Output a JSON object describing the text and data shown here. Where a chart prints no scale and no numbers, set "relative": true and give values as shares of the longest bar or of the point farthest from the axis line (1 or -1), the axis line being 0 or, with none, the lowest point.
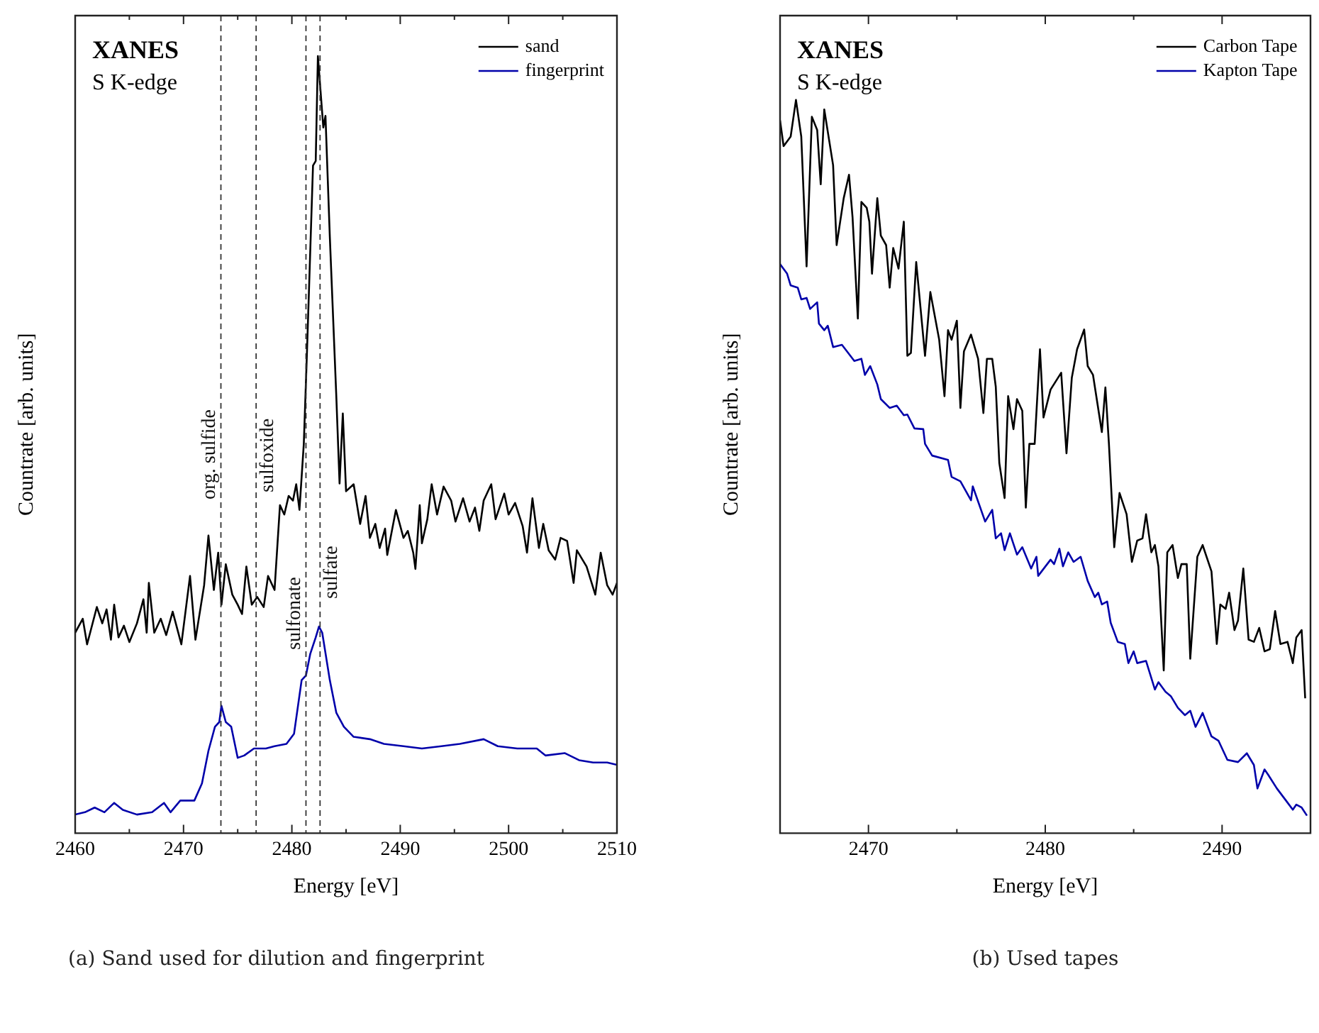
{
  "chart_data": [
    {
      "type": "line",
      "title": "XANES",
      "subtitle": "S K-edge",
      "xlabel": "Energy [eV]",
      "ylabel": "Countrate [arb. units]",
      "relative": true,
      "grid": false,
      "marker": "none",
      "legend": "top right",
      "annotations": [
        "(a) Sand used for dilution and fingerprint"
      ],
      "xlim": [
        2460,
        2510
      ],
      "xticks": [
        2460,
        {
          "value": 2465,
          "label": null
        },
        2470,
        {
          "value": 2475,
          "label": null
        },
        2480,
        {
          "value": 2485,
          "label": null
        },
        2490,
        {
          "value": 2495,
          "label": null
        },
        2500,
        {
          "value": 2505,
          "label": null
        },
        2510
      ],
      "ref_lines": [
        {
          "axis": "x",
          "value": 2473.45,
          "label": "org. sulfide",
          "line_style": "dashed"
        },
        {
          "axis": "x",
          "value": 2476.7,
          "label": "sulfoxide",
          "line_style": "dashed"
        },
        {
          "axis": "x",
          "value": 2481.3,
          "label": "sulfonate",
          "line_style": "dashed"
        },
        {
          "axis": "x",
          "value": 2482.6,
          "label": "sulfate",
          "line_style": "dashed"
        }
      ],
      "series": [
        {
          "name": "sand",
          "color": "#000000",
          "x": [
            2460,
            2460.7,
            2461.1,
            2462,
            2462.5,
            2462.9,
            2463.3,
            2463.6,
            2464,
            2464.5,
            2465,
            2465.7,
            2466.3,
            2466.6,
            2466.8,
            2467.3,
            2467.9,
            2468.4,
            2469,
            2469.8,
            2470.6,
            2471.1,
            2471.9,
            2472.3,
            2472.8,
            2473.2,
            2473.5,
            2473.9,
            2474.5,
            2475,
            2475.4,
            2475.8,
            2476.3,
            2476.8,
            2477.4,
            2477.8,
            2478.4,
            2478.9,
            2479.3,
            2479.7,
            2480.1,
            2480.4,
            2480.7,
            2481.1,
            2481.4,
            2481.95,
            2482.2,
            2482.4,
            2482.9,
            2483.1,
            2483.5,
            2484.1,
            2484.4,
            2484.7,
            2485,
            2485.7,
            2486.3,
            2486.8,
            2487.2,
            2487.7,
            2488.1,
            2488.6,
            2488.8,
            2489.6,
            2490.3,
            2490.7,
            2491.2,
            2491.4,
            2491.8,
            2492,
            2492.5,
            2492.9,
            2493.4,
            2494,
            2494.7,
            2495.1,
            2495.8,
            2496.4,
            2496.9,
            2497.3,
            2497.7,
            2498.4,
            2498.8,
            2499.6,
            2500,
            2500.6,
            2501.3,
            2501.7,
            2502.2,
            2502.8,
            2503.2,
            2503.7,
            2504.3,
            2504.8,
            2505.4,
            2506,
            2506.3,
            2507.2,
            2508,
            2508.5,
            2509.1,
            2509.6,
            2510
          ],
          "values": [
            0.258,
            0.276,
            0.243,
            0.291,
            0.27,
            0.288,
            0.249,
            0.294,
            0.252,
            0.267,
            0.246,
            0.27,
            0.301,
            0.258,
            0.322,
            0.258,
            0.276,
            0.255,
            0.285,
            0.243,
            0.331,
            0.249,
            0.319,
            0.383,
            0.313,
            0.361,
            0.294,
            0.346,
            0.307,
            0.294,
            0.282,
            0.343,
            0.294,
            0.304,
            0.291,
            0.331,
            0.313,
            0.422,
            0.41,
            0.434,
            0.428,
            0.449,
            0.416,
            0.501,
            0.622,
            0.859,
            0.865,
            1,
            0.908,
            0.923,
            0.768,
            0.562,
            0.45,
            0.54,
            0.44,
            0.449,
            0.398,
            0.434,
            0.38,
            0.398,
            0.367,
            0.392,
            0.358,
            0.416,
            0.38,
            0.389,
            0.361,
            0.34,
            0.422,
            0.373,
            0.404,
            0.449,
            0.41,
            0.446,
            0.428,
            0.401,
            0.431,
            0.401,
            0.419,
            0.389,
            0.428,
            0.449,
            0.404,
            0.437,
            0.41,
            0.425,
            0.395,
            0.361,
            0.431,
            0.367,
            0.398,
            0.364,
            0.352,
            0.38,
            0.376,
            0.322,
            0.364,
            0.343,
            0.307,
            0.361,
            0.319,
            0.307,
            0.322
          ]
        },
        {
          "name": "fingerprint",
          "color": "#0000aa",
          "x": [
            2460,
            2460.9,
            2461.8,
            2462.7,
            2463.6,
            2464.4,
            2465.7,
            2467.1,
            2468.2,
            2468.8,
            2469.7,
            2471,
            2471.7,
            2472.3,
            2472.9,
            2473.3,
            2473.5,
            2473.9,
            2474.4,
            2475,
            2475.6,
            2476.5,
            2477.6,
            2478.4,
            2479.5,
            2480.2,
            2480.9,
            2481.3,
            2481.7,
            2482.2,
            2482.5,
            2482.8,
            2483.5,
            2484.1,
            2484.8,
            2485.7,
            2487.2,
            2488.5,
            2490.3,
            2492,
            2493.8,
            2495.5,
            2497.7,
            2499,
            2500.8,
            2502.6,
            2503.4,
            2505.2,
            2506.5,
            2507.8,
            2509.1,
            2510
          ],
          "values": [
            0.024,
            0.027,
            0.033,
            0.027,
            0.039,
            0.03,
            0.024,
            0.027,
            0.039,
            0.027,
            0.042,
            0.042,
            0.064,
            0.106,
            0.137,
            0.143,
            0.164,
            0.143,
            0.137,
            0.097,
            0.1,
            0.109,
            0.109,
            0.112,
            0.115,
            0.128,
            0.197,
            0.203,
            0.231,
            0.252,
            0.266,
            0.258,
            0.197,
            0.155,
            0.137,
            0.124,
            0.121,
            0.115,
            0.112,
            0.109,
            0.112,
            0.115,
            0.121,
            0.112,
            0.109,
            0.109,
            0.1,
            0.103,
            0.094,
            0.091,
            0.091,
            0.088
          ]
        }
      ]
    },
    {
      "type": "line",
      "title": "XANES",
      "subtitle": "S K-edge",
      "xlabel": "Energy [eV]",
      "ylabel": "Countrate [arb. units]",
      "relative": true,
      "grid": false,
      "marker": "none",
      "legend": "top right",
      "annotations": [
        "(b) Used tapes"
      ],
      "xlim": [
        2465,
        2495
      ],
      "xticks": [
        2470,
        {
          "value": 2475,
          "label": null
        },
        2480,
        {
          "value": 2485,
          "label": null
        },
        2490
      ],
      "series": [
        {
          "name": "Carbon Tape",
          "color": "#000000",
          "x": [
            2465,
            2465.2,
            2465.6,
            2465.9,
            2466.2,
            2466.5,
            2466.8,
            2467.1,
            2467.3,
            2467.5,
            2468,
            2468.2,
            2468.6,
            2468.9,
            2469.1,
            2469.4,
            2469.6,
            2469.9,
            2470.05,
            2470.2,
            2470.5,
            2470.7,
            2471,
            2471.2,
            2471.4,
            2471.7,
            2472,
            2472.2,
            2472.4,
            2472.7,
            2473.2,
            2473.5,
            2474,
            2474.3,
            2474.5,
            2474.7,
            2475,
            2475.2,
            2475.4,
            2475.8,
            2476.2,
            2476.5,
            2476.7,
            2477,
            2477.2,
            2477.4,
            2477.7,
            2477.9,
            2478.2,
            2478.4,
            2478.7,
            2478.9,
            2479.1,
            2479.4,
            2479.7,
            2479.9,
            2480.3,
            2480.9,
            2481.2,
            2481.5,
            2481.8,
            2482.2,
            2482.4,
            2482.7,
            2483.2,
            2483.4,
            2483.6,
            2483.9,
            2484.2,
            2484.6,
            2484.9,
            2485.2,
            2485.5,
            2485.7,
            2486,
            2486.2,
            2486.4,
            2486.7,
            2486.9,
            2487.2,
            2487.5,
            2487.7,
            2488,
            2488.2,
            2488.6,
            2488.9,
            2489.4,
            2489.7,
            2489.9,
            2490.2,
            2490.4,
            2490.7,
            2490.9,
            2491.2,
            2491.5,
            2491.8,
            2492.1,
            2492.4,
            2492.7,
            2493,
            2493.3,
            2493.7,
            2494,
            2494.2,
            2494.5,
            2494.7
          ],
          "values": [
            0.972,
            0.937,
            0.95,
            1,
            0.95,
            0.773,
            0.977,
            0.959,
            0.885,
            0.987,
            0.911,
            0.802,
            0.866,
            0.898,
            0.84,
            0.702,
            0.861,
            0.853,
            0.834,
            0.763,
            0.866,
            0.815,
            0.802,
            0.744,
            0.798,
            0.77,
            0.834,
            0.651,
            0.655,
            0.779,
            0.651,
            0.738,
            0.673,
            0.596,
            0.686,
            0.673,
            0.699,
            0.58,
            0.657,
            0.68,
            0.647,
            0.573,
            0.647,
            0.647,
            0.609,
            0.505,
            0.457,
            0.596,
            0.551,
            0.592,
            0.576,
            0.444,
            0.531,
            0.531,
            0.66,
            0.567,
            0.605,
            0.628,
            0.518,
            0.621,
            0.66,
            0.687,
            0.637,
            0.625,
            0.547,
            0.608,
            0.531,
            0.39,
            0.464,
            0.435,
            0.37,
            0.399,
            0.402,
            0.435,
            0.383,
            0.393,
            0.364,
            0.222,
            0.383,
            0.393,
            0.348,
            0.367,
            0.367,
            0.238,
            0.377,
            0.393,
            0.357,
            0.258,
            0.312,
            0.306,
            0.328,
            0.277,
            0.29,
            0.361,
            0.264,
            0.261,
            0.28,
            0.248,
            0.251,
            0.303,
            0.258,
            0.261,
            0.232,
            0.267,
            0.277,
            0.184
          ]
        },
        {
          "name": "Kapton Tape",
          "color": "#0000aa",
          "x": [
            2465,
            2465.4,
            2465.6,
            2466,
            2466.2,
            2466.5,
            2466.7,
            2467.1,
            2467.2,
            2467.5,
            2467.7,
            2468,
            2468.5,
            2469.2,
            2469.6,
            2469.8,
            2470.1,
            2470.5,
            2470.7,
            2471.2,
            2471.6,
            2472,
            2472.2,
            2472.6,
            2473.1,
            2473.2,
            2473.6,
            2474.5,
            2474.7,
            2475.2,
            2475.8,
            2475.9,
            2476.6,
            2477,
            2477.2,
            2477.5,
            2477.7,
            2478,
            2478.4,
            2478.7,
            2479.2,
            2479.5,
            2479.6,
            2480.3,
            2480.5,
            2480.8,
            2481,
            2481.3,
            2481.6,
            2482,
            2482.4,
            2482.8,
            2483,
            2483.2,
            2483.5,
            2483.7,
            2484.1,
            2484.5,
            2484.7,
            2485,
            2485.2,
            2485.7,
            2486.2,
            2486.4,
            2486.8,
            2487.1,
            2487.5,
            2487.9,
            2488.2,
            2488.5,
            2488.9,
            2489.4,
            2489.8,
            2490.3,
            2490.9,
            2491.4,
            2491.8,
            2492,
            2492.4,
            2492.6,
            2493.1,
            2493.6,
            2494,
            2494.2,
            2494.5,
            2494.8
          ],
          "values": [
            0.776,
            0.763,
            0.747,
            0.744,
            0.728,
            0.73,
            0.715,
            0.724,
            0.695,
            0.686,
            0.692,
            0.663,
            0.666,
            0.644,
            0.647,
            0.625,
            0.637,
            0.612,
            0.592,
            0.58,
            0.583,
            0.57,
            0.571,
            0.552,
            0.551,
            0.531,
            0.515,
            0.509,
            0.486,
            0.48,
            0.454,
            0.473,
            0.425,
            0.441,
            0.402,
            0.409,
            0.386,
            0.409,
            0.38,
            0.39,
            0.361,
            0.377,
            0.351,
            0.373,
            0.367,
            0.388,
            0.364,
            0.383,
            0.37,
            0.377,
            0.344,
            0.322,
            0.328,
            0.312,
            0.316,
            0.287,
            0.261,
            0.258,
            0.232,
            0.248,
            0.232,
            0.235,
            0.196,
            0.206,
            0.193,
            0.187,
            0.171,
            0.161,
            0.167,
            0.145,
            0.164,
            0.132,
            0.126,
            0.1,
            0.097,
            0.109,
            0.093,
            0.061,
            0.087,
            0.08,
            0.061,
            0.045,
            0.032,
            0.039,
            0.035,
            0.024
          ]
        }
      ]
    }
  ]
}
